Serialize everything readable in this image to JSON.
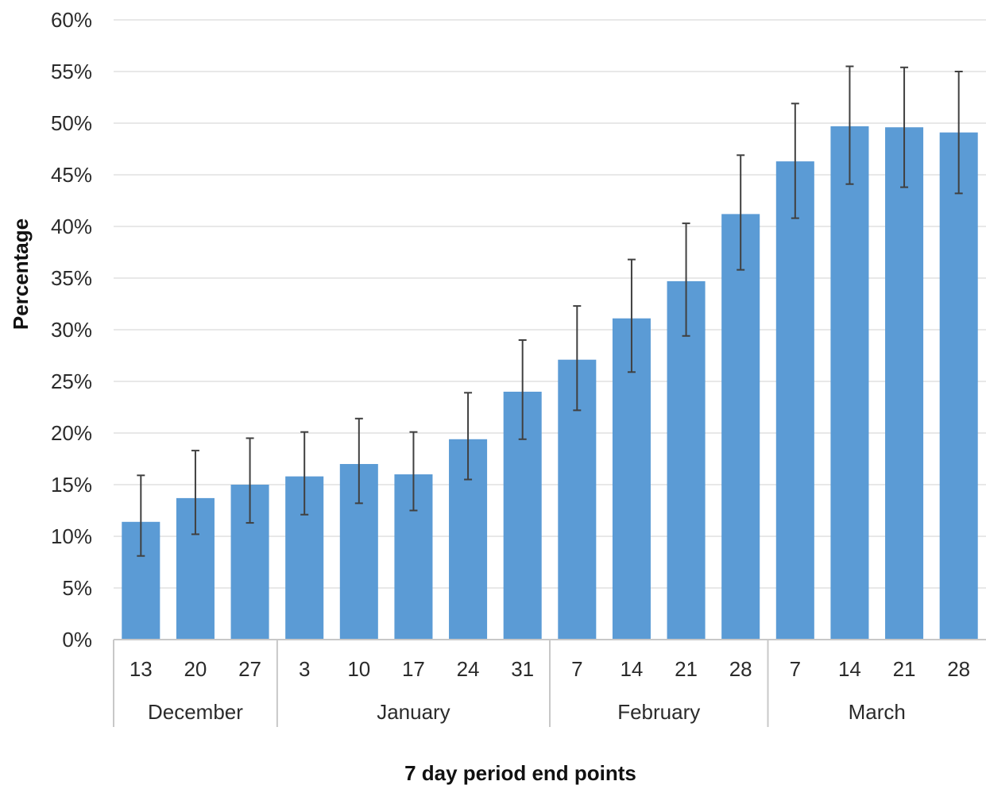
{
  "chart_data": {
    "type": "bar",
    "title": "",
    "xlabel": "7 day period end points",
    "ylabel": "Percentage",
    "ylim": [
      0,
      60
    ],
    "y_tick_step": 5,
    "y_tick_format": "percent",
    "grid": true,
    "legend": "none",
    "categories": [
      "13",
      "20",
      "27",
      "3",
      "10",
      "17",
      "24",
      "31",
      "7",
      "14",
      "21",
      "28",
      "7",
      "14",
      "21",
      "28"
    ],
    "groups": [
      {
        "label": "December",
        "count": 3
      },
      {
        "label": "January",
        "count": 5
      },
      {
        "label": "February",
        "count": 4
      },
      {
        "label": "March",
        "count": 4
      }
    ],
    "values": [
      11.4,
      13.7,
      15.0,
      15.8,
      17.0,
      16.0,
      19.4,
      24.0,
      27.1,
      31.1,
      34.7,
      41.2,
      46.3,
      49.7,
      49.6,
      49.1
    ],
    "error_low": [
      8.1,
      10.2,
      11.3,
      12.1,
      13.2,
      12.5,
      15.5,
      19.4,
      22.2,
      25.9,
      29.4,
      35.8,
      40.8,
      44.1,
      43.8,
      43.2
    ],
    "error_high": [
      15.9,
      18.3,
      19.5,
      20.1,
      21.4,
      20.1,
      23.9,
      29.0,
      32.3,
      36.8,
      40.3,
      46.9,
      51.9,
      55.5,
      55.4,
      55.0
    ],
    "colors": {
      "bar": "#5b9bd5",
      "error": "#404040",
      "grid": "#e8e8e8",
      "axis": "#c8c8c8"
    }
  }
}
